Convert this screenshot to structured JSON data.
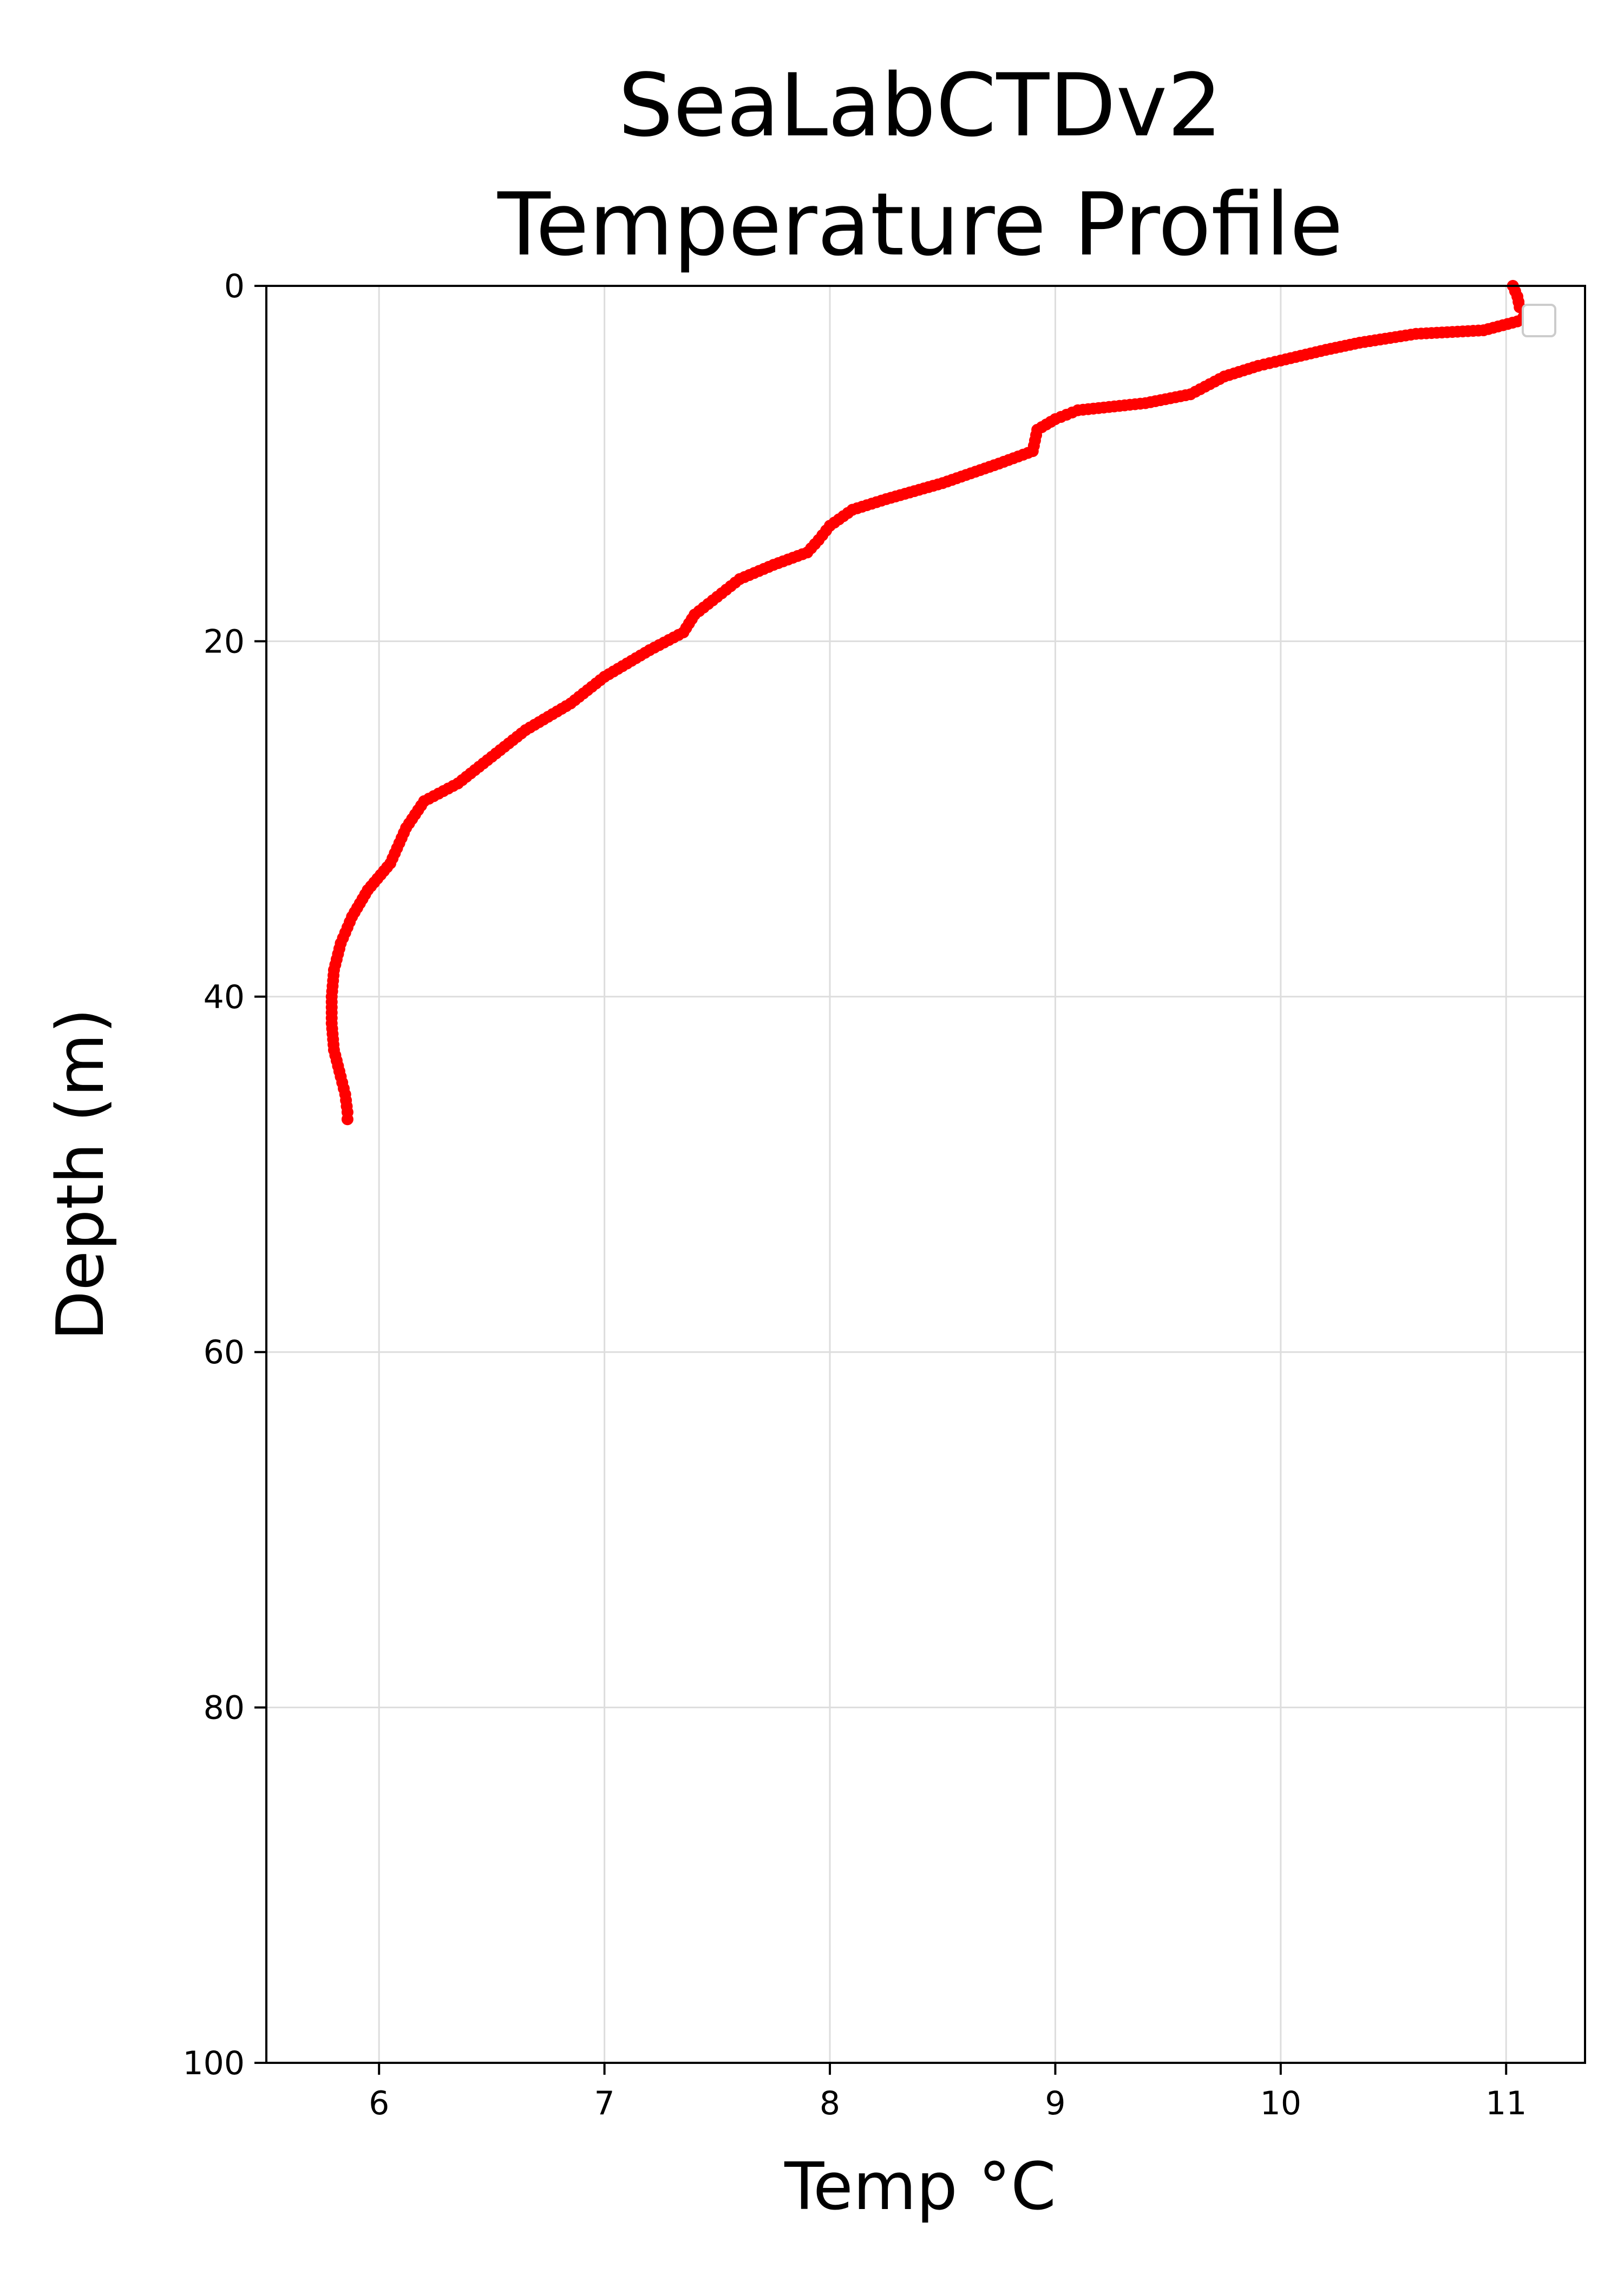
{
  "chart_data": {
    "type": "scatter",
    "title_lines": [
      "SeaLabCTDv2",
      "Temperature Profile"
    ],
    "xlabel": "Temp °C",
    "ylabel": "Depth (m)",
    "xlim": [
      5.5,
      11.35
    ],
    "ylim": [
      100,
      0
    ],
    "y_inverted": true,
    "xticks": [
      6,
      7,
      8,
      9,
      10,
      11
    ],
    "yticks": [
      0,
      20,
      40,
      60,
      80,
      100
    ],
    "grid": true,
    "legend": "top-right (empty)",
    "series": [
      {
        "color": "#ff0000",
        "points": [
          [
            11.03,
            0.0
          ],
          [
            11.05,
            0.6
          ],
          [
            11.06,
            1.2
          ],
          [
            11.1,
            1.6
          ],
          [
            11.05,
            2.0
          ],
          [
            10.9,
            2.5
          ],
          [
            10.6,
            2.7
          ],
          [
            10.35,
            3.2
          ],
          [
            10.2,
            3.6
          ],
          [
            10.0,
            4.2
          ],
          [
            9.9,
            4.5
          ],
          [
            9.75,
            5.1
          ],
          [
            9.6,
            6.1
          ],
          [
            9.4,
            6.6
          ],
          [
            9.1,
            7.0
          ],
          [
            9.0,
            7.5
          ],
          [
            8.92,
            8.1
          ],
          [
            8.9,
            9.3
          ],
          [
            8.75,
            10.0
          ],
          [
            8.5,
            11.1
          ],
          [
            8.25,
            12.0
          ],
          [
            8.1,
            12.6
          ],
          [
            8.0,
            13.5
          ],
          [
            7.95,
            14.3
          ],
          [
            7.9,
            15.0
          ],
          [
            7.75,
            15.7
          ],
          [
            7.6,
            16.5
          ],
          [
            7.5,
            17.5
          ],
          [
            7.4,
            18.5
          ],
          [
            7.35,
            19.5
          ],
          [
            7.2,
            20.5
          ],
          [
            7.0,
            22.0
          ],
          [
            6.85,
            23.5
          ],
          [
            6.65,
            25.0
          ],
          [
            6.5,
            26.5
          ],
          [
            6.35,
            28.0
          ],
          [
            6.2,
            29.0
          ],
          [
            6.12,
            30.5
          ],
          [
            6.05,
            32.5
          ],
          [
            5.95,
            34.0
          ],
          [
            5.88,
            35.5
          ],
          [
            5.83,
            37.0
          ],
          [
            5.8,
            38.5
          ],
          [
            5.79,
            40.0
          ],
          [
            5.79,
            41.5
          ],
          [
            5.8,
            43.0
          ],
          [
            5.83,
            44.5
          ],
          [
            5.85,
            45.5
          ],
          [
            5.86,
            46.5
          ],
          [
            5.86,
            46.9
          ]
        ]
      }
    ]
  }
}
